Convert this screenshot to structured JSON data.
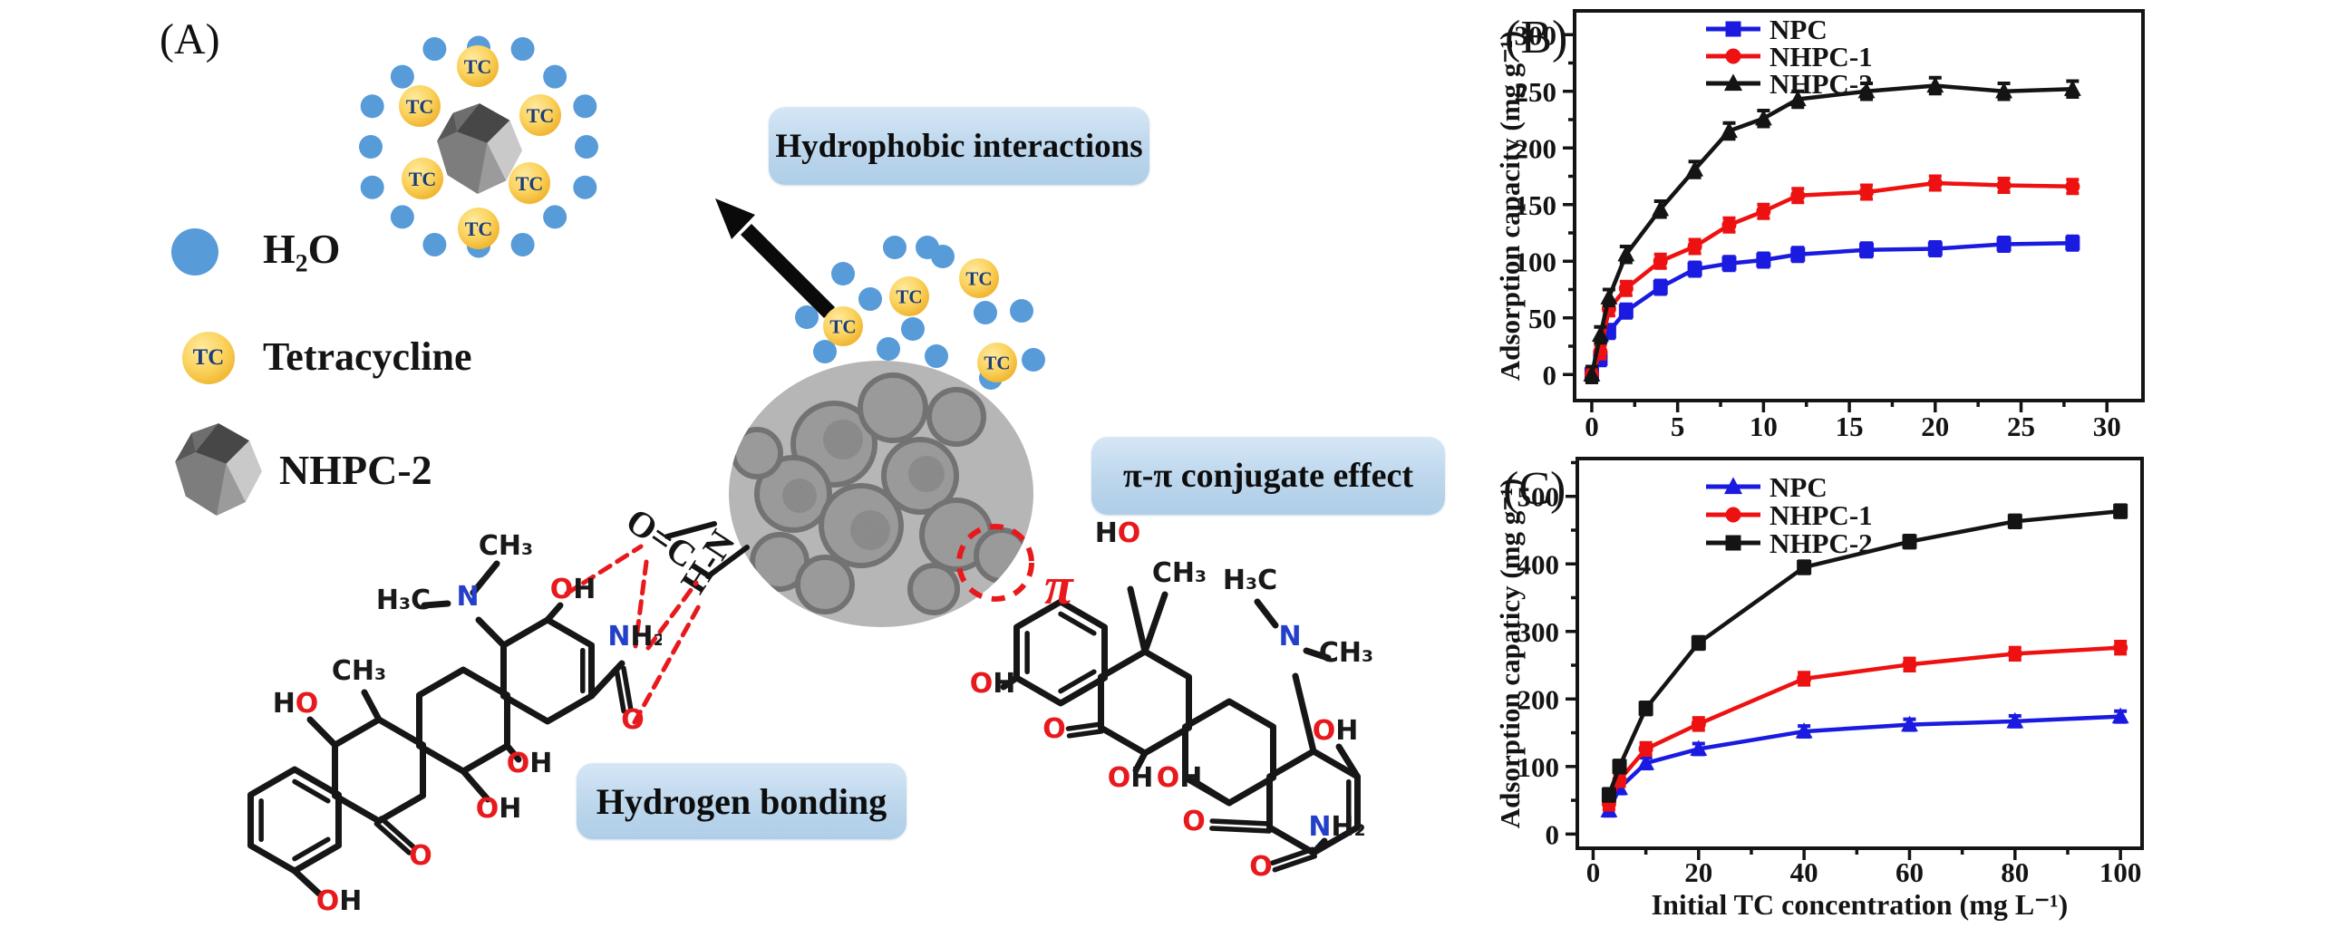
{
  "panel_a": {
    "label": "(A)",
    "legend": [
      {
        "icon": "water-dot",
        "label": "H₂O"
      },
      {
        "icon": "tc-ball",
        "label": "Tetracycline"
      },
      {
        "icon": "nhpc2-polyhedron",
        "label": "NHPC-2"
      }
    ],
    "tc_label": "TC",
    "boxes": {
      "hydrophobic": "Hydrophobic interactions",
      "pi_pi": "π-π conjugate effect",
      "hydrogen": "Hydrogen bonding"
    },
    "bond_labels": {
      "o_c": "O=C",
      "h_n": "H-N",
      "pi": "π"
    },
    "atom_labels": {
      "oh": "OH",
      "ho": "HO",
      "o": "O",
      "n": "N",
      "nh2": "NH₂",
      "ch3": "CH₃",
      "h3c": "H₃C"
    }
  },
  "chart_data": [
    {
      "id": "B",
      "type": "line",
      "panel_label": "(B)",
      "title": "",
      "xlabel": "",
      "ylabel": "Adsorption capacity (mg g⁻¹)",
      "x": [
        0,
        0.5,
        1,
        2,
        4,
        6,
        8,
        10,
        12,
        16,
        20,
        24,
        28
      ],
      "series": [
        {
          "name": "NPC",
          "marker": "square",
          "color": "#1a1ae0",
          "values": [
            0,
            14,
            38,
            56,
            77,
            93,
            98,
            101,
            106,
            110,
            111,
            115,
            116
          ],
          "err": 6
        },
        {
          "name": "NHPC-1",
          "marker": "circle",
          "color": "#ee1111",
          "values": [
            0,
            20,
            58,
            76,
            100,
            113,
            132,
            144,
            158,
            161,
            169,
            167,
            166
          ],
          "err": 6
        },
        {
          "name": "NHPC-2",
          "marker": "triangle",
          "color": "#141414",
          "values": [
            0,
            35,
            68,
            106,
            146,
            181,
            215,
            226,
            243,
            250,
            255,
            250,
            252
          ],
          "err": 7
        }
      ],
      "xticks": [
        0,
        5,
        10,
        15,
        20,
        25,
        30
      ],
      "yticks": [
        0,
        50,
        100,
        150,
        200,
        250,
        300
      ],
      "xlim": [
        -1,
        32.1
      ],
      "ylim": [
        -23,
        321
      ],
      "x_minor_step": 2.5,
      "y_minor_step": 25,
      "legend_position": "top-left",
      "grid": false
    },
    {
      "id": "C",
      "type": "line",
      "panel_label": "(C)",
      "title": "",
      "xlabel": "Initial TC concentration (mg L⁻¹)",
      "ylabel": "Adsorption capaticy (mg g⁻¹)",
      "x": [
        3,
        5,
        10,
        20,
        40,
        60,
        80,
        100
      ],
      "series": [
        {
          "name": "NPC",
          "marker": "triangle",
          "color": "#1a1ae0",
          "values": [
            35,
            68,
            105,
            126,
            152,
            162,
            167,
            174
          ],
          "err": 8
        },
        {
          "name": "NHPC-1",
          "marker": "circle",
          "color": "#ee1111",
          "values": [
            45,
            80,
            126,
            163,
            230,
            251,
            267,
            276
          ],
          "err": 9
        },
        {
          "name": "NHPC-2",
          "marker": "square",
          "color": "#141414",
          "values": [
            58,
            100,
            186,
            283,
            395,
            433,
            463,
            478
          ],
          "err": 9
        }
      ],
      "xticks": [
        0,
        20,
        40,
        60,
        80,
        100
      ],
      "yticks": [
        0,
        100,
        200,
        300,
        400,
        500
      ],
      "xlim": [
        -3,
        104.1
      ],
      "ylim": [
        -21,
        556
      ],
      "x_minor_step": 10,
      "y_minor_step": 50,
      "legend_position": "top-left",
      "grid": false
    }
  ],
  "colors": {
    "water_blue": "#579bd8",
    "tc_gold": "#f3bd3a",
    "tc_text_navy": "#1c3d7a",
    "box_blue": "#bcd6ec",
    "bond_red": "#e8191c",
    "atom_red": "#e8191c",
    "atom_blue": "#2540c8",
    "series_blue": "#1a1ae0",
    "series_red": "#ee1111",
    "series_black": "#141414"
  }
}
